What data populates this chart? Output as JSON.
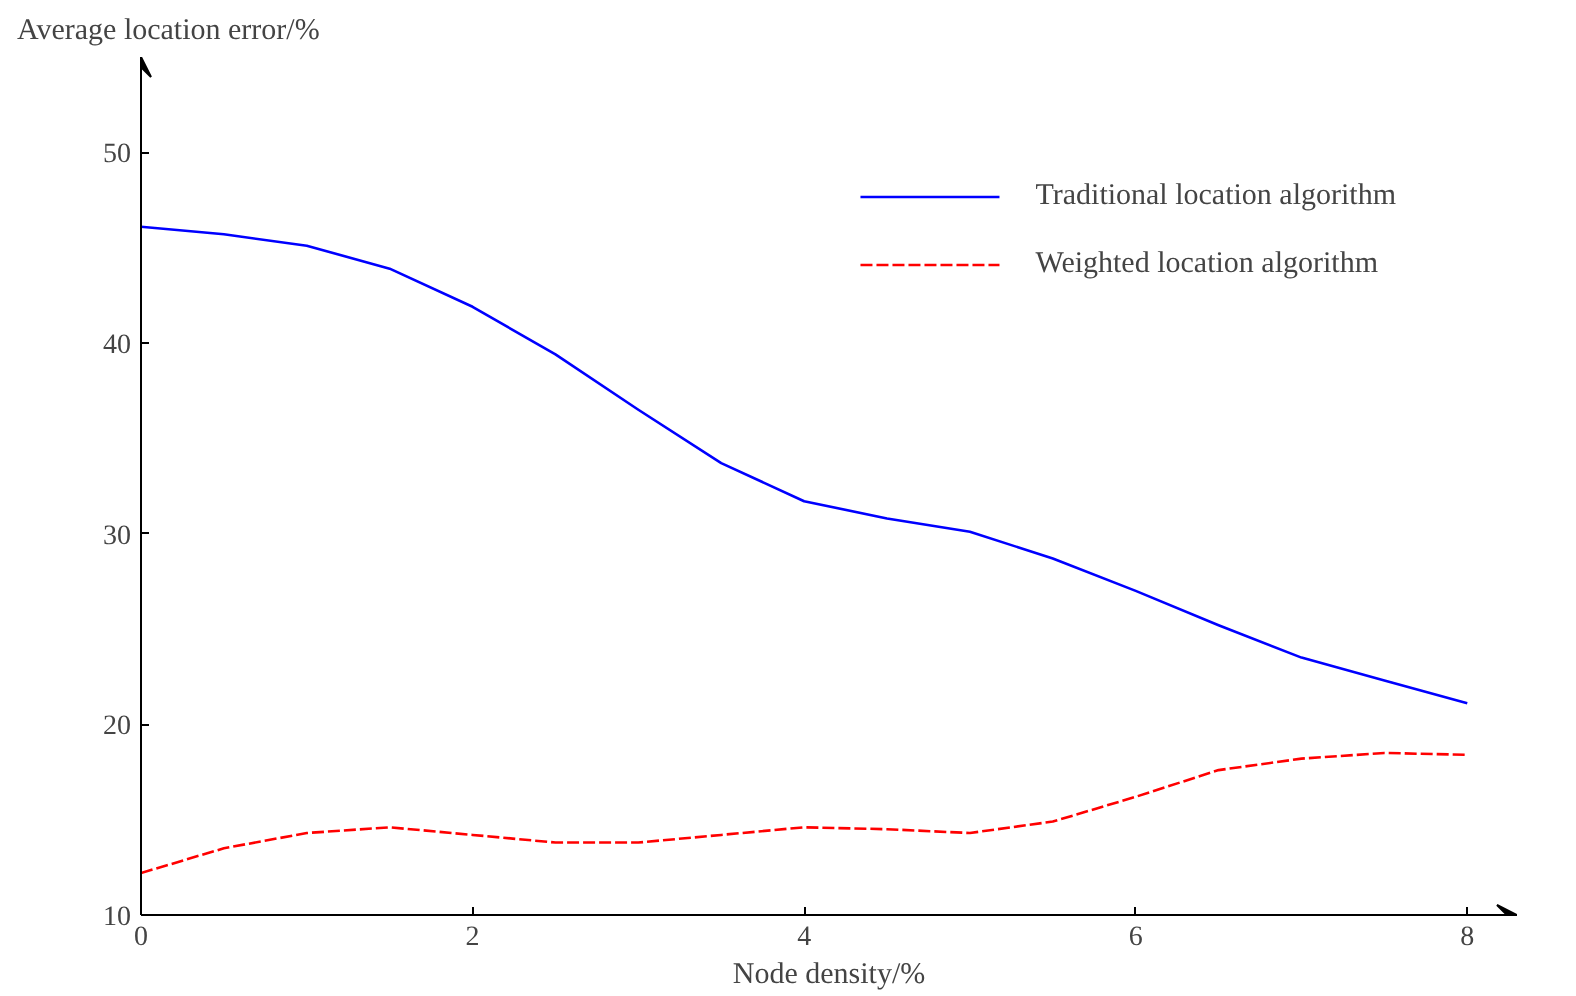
{
  "chart_data": {
    "type": "line",
    "xlabel": "Node density/%",
    "ylabel": "Average location error/%",
    "x": [
      0,
      0.5,
      1,
      1.5,
      2,
      2.5,
      3,
      3.5,
      4,
      4.5,
      5,
      5.5,
      6,
      6.5,
      7,
      7.5,
      8
    ],
    "series": [
      {
        "name": "Traditional location algorithm",
        "color": "#0000ff",
        "line_style": "solid",
        "values": [
          46.1,
          45.7,
          45.1,
          43.9,
          41.9,
          39.4,
          36.5,
          33.7,
          31.7,
          30.8,
          30.1,
          28.7,
          27.0,
          25.2,
          23.5,
          22.3,
          21.1
        ]
      },
      {
        "name": "Weighted location algorithm",
        "color": "#ff0000",
        "line_style": "dashed",
        "values": [
          12.2,
          13.5,
          14.3,
          14.6,
          14.2,
          13.8,
          13.8,
          14.2,
          14.6,
          14.5,
          14.3,
          14.9,
          16.2,
          17.6,
          18.2,
          18.5,
          18.4
        ]
      }
    ],
    "xlim": [
      0,
      8.3
    ],
    "ylim": [
      10,
      55
    ],
    "xticks": [
      0,
      2,
      4,
      6,
      8
    ],
    "yticks": [
      10,
      20,
      30,
      40,
      50
    ],
    "grid": false,
    "legend": "top right"
  }
}
